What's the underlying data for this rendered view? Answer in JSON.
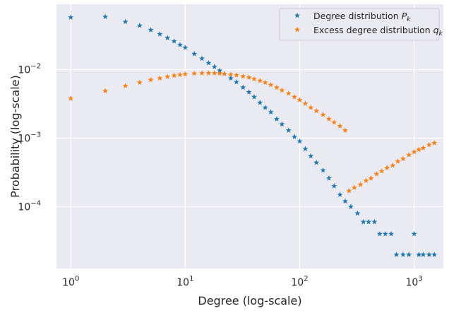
{
  "chart_data": {
    "type": "scatter",
    "title": "",
    "xlabel": "Degree (log-scale)",
    "ylabel": "Probability (log-scale)",
    "xscale": "log",
    "yscale": "log",
    "xlim": [
      0.75,
      1800
    ],
    "ylim": [
      1.25e-05,
      0.09
    ],
    "grid": true,
    "legend_position": "top-right",
    "marker": "star",
    "x_ticks": [
      {
        "value": 1,
        "base": "10",
        "exp": "0"
      },
      {
        "value": 10,
        "base": "10",
        "exp": "1"
      },
      {
        "value": 100,
        "base": "10",
        "exp": "2"
      },
      {
        "value": 1000,
        "base": "10",
        "exp": "3"
      }
    ],
    "y_ticks": [
      {
        "value": 0.0001,
        "base": "10",
        "exp": "−4"
      },
      {
        "value": 0.001,
        "base": "10",
        "exp": "−3"
      },
      {
        "value": 0.01,
        "base": "10",
        "exp": "−2"
      }
    ],
    "series": [
      {
        "name_text": "Degree distribution ",
        "name_symbol": "P",
        "name_sub": "k",
        "color": "#1f77b4",
        "x": [
          1,
          2,
          3,
          4,
          5,
          6,
          7,
          8,
          9,
          10,
          12,
          14,
          16,
          18,
          20,
          22,
          25,
          28,
          32,
          36,
          40,
          45,
          50,
          56,
          63,
          70,
          80,
          90,
          100,
          112,
          125,
          140,
          160,
          180,
          200,
          225,
          250,
          280,
          320,
          360,
          400,
          450,
          500,
          560,
          630,
          700,
          800,
          900,
          1000,
          1100,
          1200,
          1350,
          1500
        ],
        "y": [
          0.058,
          0.059,
          0.05,
          0.044,
          0.038,
          0.033,
          0.029,
          0.026,
          0.023,
          0.021,
          0.017,
          0.0145,
          0.0125,
          0.011,
          0.0097,
          0.0087,
          0.0075,
          0.0066,
          0.0055,
          0.0047,
          0.004,
          0.0033,
          0.0028,
          0.0024,
          0.0019,
          0.0016,
          0.0013,
          0.00105,
          0.0009,
          0.0007,
          0.00055,
          0.00044,
          0.00034,
          0.00026,
          0.0002,
          0.00015,
          0.00012,
          0.0001,
          8e-05,
          6e-05,
          6e-05,
          6e-05,
          4e-05,
          4e-05,
          4e-05,
          2e-05,
          2e-05,
          2e-05,
          4e-05,
          2e-05,
          2e-05,
          2e-05,
          2e-05
        ]
      },
      {
        "name_text": "Excess degree distribution ",
        "name_symbol": "q",
        "name_sub": "k",
        "color": "#ff7f0e",
        "x": [
          1,
          2,
          3,
          4,
          5,
          6,
          7,
          8,
          9,
          10,
          12,
          14,
          16,
          18,
          20,
          22,
          25,
          28,
          32,
          36,
          40,
          45,
          50,
          56,
          63,
          70,
          80,
          90,
          100,
          112,
          125,
          140,
          160,
          180,
          200,
          225,
          250,
          270,
          300,
          340,
          380,
          420,
          470,
          520,
          580,
          650,
          720,
          800,
          900,
          1000,
          1100,
          1200,
          1350,
          1500
        ],
        "y": [
          0.0038,
          0.0049,
          0.0058,
          0.0065,
          0.0071,
          0.0075,
          0.0079,
          0.0082,
          0.0084,
          0.0086,
          0.0088,
          0.0089,
          0.0089,
          0.0089,
          0.0088,
          0.0087,
          0.0085,
          0.0083,
          0.008,
          0.0077,
          0.0073,
          0.0069,
          0.0065,
          0.006,
          0.0055,
          0.005,
          0.0045,
          0.004,
          0.0036,
          0.0032,
          0.0028,
          0.0025,
          0.0022,
          0.0019,
          0.0017,
          0.0015,
          0.0013,
          0.00017,
          0.00019,
          0.00021,
          0.00024,
          0.00026,
          0.0003,
          0.00033,
          0.00037,
          0.0004,
          0.00046,
          0.0005,
          0.00057,
          0.00063,
          0.00068,
          0.00072,
          0.0008,
          0.00085
        ]
      }
    ]
  }
}
